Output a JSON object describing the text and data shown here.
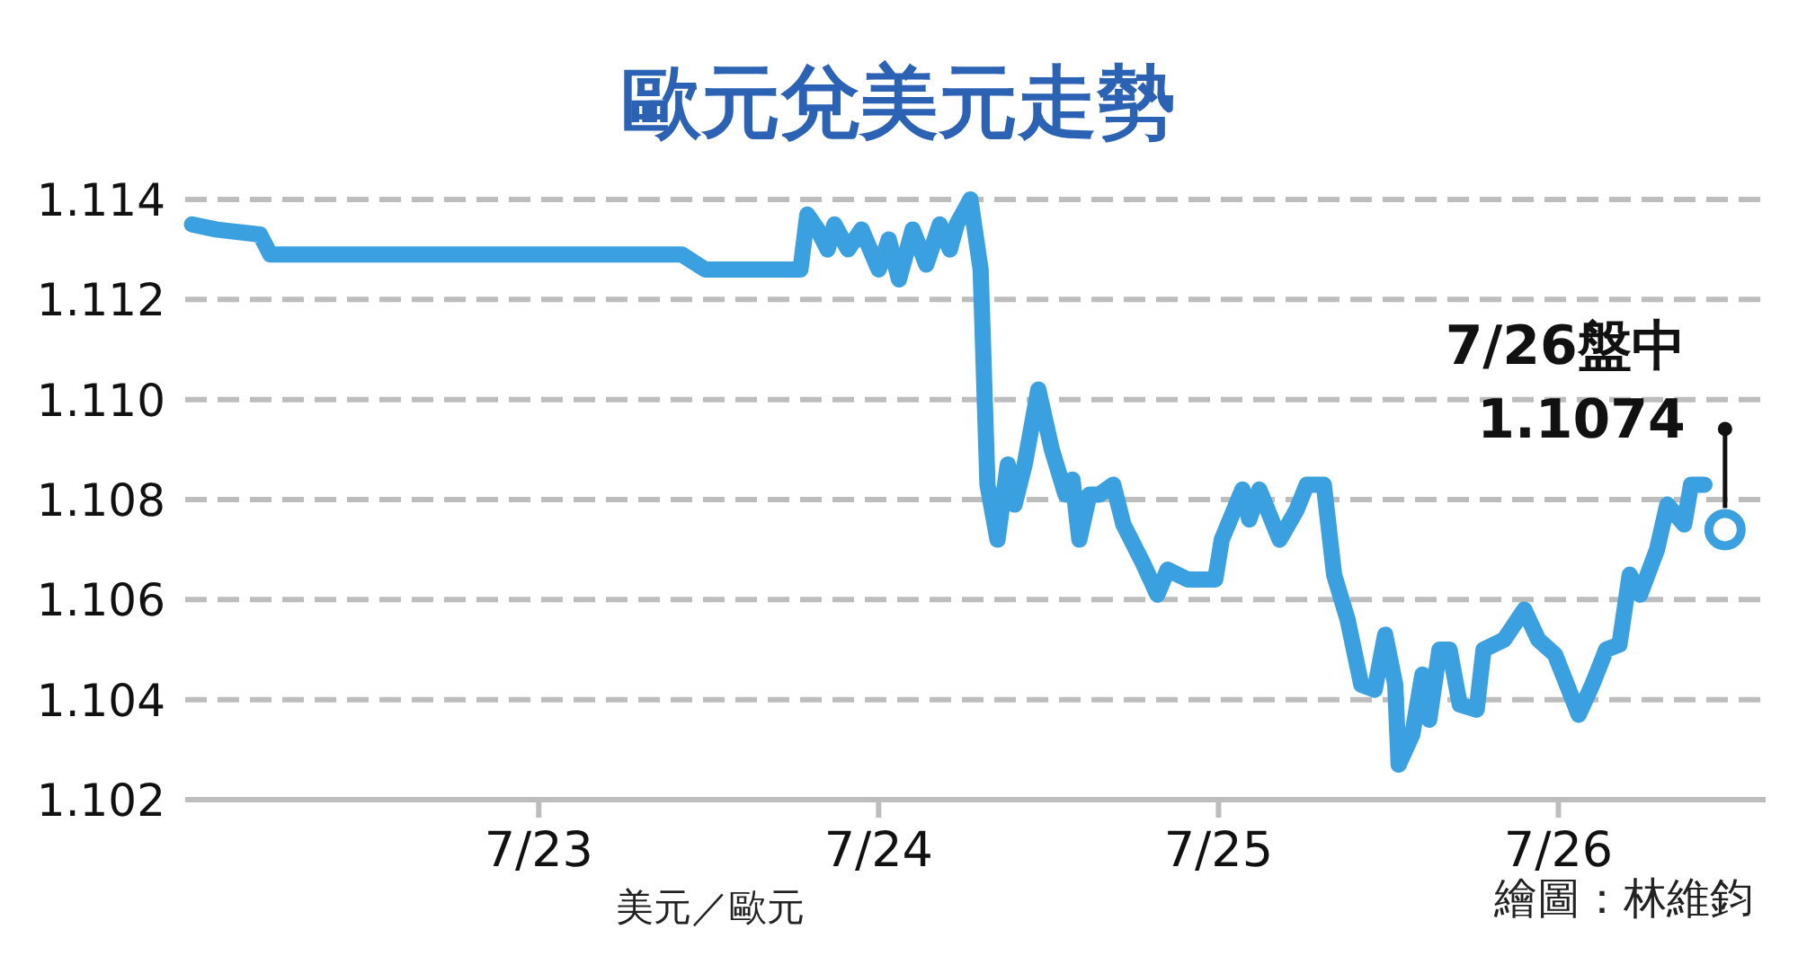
{
  "chart_data": {
    "type": "line",
    "title": "歐元兌美元走勢",
    "x": [
      "--07-21T23:31",
      "--07-22T01:12",
      "--07-22T04:19",
      "--07-22T05:02",
      "--07-23T10:05",
      "--07-23T11:46",
      "--07-23T18:29",
      "--07-23T18:58",
      "--07-23T19:41",
      "--07-23T20:24",
      "--07-23T20:53",
      "--07-23T21:50",
      "--07-23T22:48",
      "--07-24T00:00",
      "--07-24T00:43",
      "--07-24T01:26",
      "--07-24T02:24",
      "--07-24T03:22",
      "--07-24T04:19",
      "--07-24T05:02",
      "--07-24T05:31",
      "--07-24T06:29",
      "--07-24T07:12",
      "--07-24T07:41",
      "--07-24T08:24",
      "--07-24T09:07",
      "--07-24T09:36",
      "--07-24T10:19",
      "--07-24T11:17",
      "--07-24T12:14",
      "--07-24T13:12",
      "--07-24T13:41",
      "--07-24T14:10",
      "--07-24T14:53",
      "--07-24T15:36",
      "--07-24T16:34",
      "--07-24T17:17",
      "--07-24T18:43",
      "--07-24T19:41",
      "--07-24T20:24",
      "--07-24T21:50",
      "--07-24T23:46",
      "--07-25T00:14",
      "--07-25T00:58",
      "--07-25T01:41",
      "--07-25T02:10",
      "--07-25T02:53",
      "--07-25T04:19",
      "--07-25T05:31",
      "--07-25T06:14",
      "--07-25T07:26",
      "--07-25T08:10",
      "--07-25T09:07",
      "--07-25T10:05",
      "--07-25T11:02",
      "--07-25T11:46",
      "--07-25T12:29",
      "--07-25T12:43",
      "--07-25T13:41",
      "--07-25T14:24",
      "--07-25T14:53",
      "--07-25T15:36",
      "--07-25T16:19",
      "--07-25T17:02",
      "--07-25T18:14",
      "--07-25T18:43",
      "--07-25T20:10",
      "--07-25T21:36",
      "--07-25T22:34",
      "--07-25T23:46",
      "--07-26T01:26",
      "--07-26T02:24",
      "--07-26T03:22",
      "--07-26T04:19",
      "--07-26T05:02",
      "--07-26T05:46",
      "--07-26T06:58",
      "--07-26T07:41",
      "--07-26T08:53",
      "--07-26T09:22",
      "--07-26T10:19"
    ],
    "series": [
      {
        "color": "#3aa0e0",
        "values": [
          1.1135,
          1.1134,
          1.1133,
          1.1129,
          1.1129,
          1.1126,
          1.1126,
          1.1137,
          1.1134,
          1.113,
          1.1135,
          1.113,
          1.1134,
          1.1126,
          1.1132,
          1.1124,
          1.1134,
          1.1127,
          1.1135,
          1.113,
          1.1135,
          1.114,
          1.1126,
          1.1083,
          1.1072,
          1.1087,
          1.1079,
          1.1087,
          1.1102,
          1.109,
          1.1081,
          1.1084,
          1.1072,
          1.1081,
          1.1081,
          1.1083,
          1.1075,
          1.1067,
          1.1061,
          1.1066,
          1.1064,
          1.1064,
          1.1072,
          1.1077,
          1.1082,
          1.1076,
          1.1082,
          1.1072,
          1.1078,
          1.1083,
          1.1083,
          1.1065,
          1.1056,
          1.1043,
          1.1042,
          1.1053,
          1.1043,
          1.1027,
          1.1033,
          1.1045,
          1.1036,
          1.105,
          1.105,
          1.1039,
          1.1038,
          1.105,
          1.1052,
          1.1058,
          1.1052,
          1.1049,
          1.1037,
          1.1043,
          1.105,
          1.1051,
          1.1065,
          1.1061,
          1.107,
          1.1079,
          1.1075,
          1.1083,
          1.1083
        ]
      },
      {
        "type": "scatter",
        "color": "#3aa0e0",
        "marker": "circle",
        "x": [
          "--07-26T11:46"
        ],
        "values": [
          1.1074
        ]
      }
    ],
    "xlim": [
      "--07-21T23:02",
      "--07-26T14:38"
    ],
    "xticks": [
      {
        "value": "--07-23",
        "label": "7/23"
      },
      {
        "value": "--07-24",
        "label": "7/24"
      },
      {
        "value": "--07-25",
        "label": "7/25"
      },
      {
        "value": "--07-26",
        "label": "7/26"
      }
    ],
    "ylim": [
      1.102,
      1.114
    ],
    "yticks": [
      {
        "value": 1.102,
        "label": "1.102"
      },
      {
        "value": 1.104,
        "label": "1.104"
      },
      {
        "value": 1.106,
        "label": "1.106"
      },
      {
        "value": 1.108,
        "label": "1.108"
      },
      {
        "value": 1.11,
        "label": "1.110"
      },
      {
        "value": 1.112,
        "label": "1.112"
      },
      {
        "value": 1.114,
        "label": "1.114"
      }
    ],
    "grid": "y",
    "annotations": [
      {
        "text": "7/26盤中",
        "x": "--07-26T11:46",
        "y": 1.1074
      },
      {
        "text": "1.1074",
        "x": "--07-26T11:46",
        "y": 1.1074
      },
      "美元／歐元",
      "繪圖：林維鈞"
    ]
  }
}
